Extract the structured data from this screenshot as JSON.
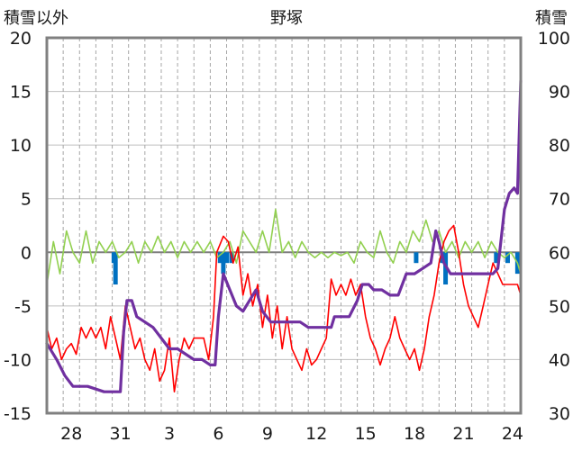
{
  "chart_data": {
    "type": "line",
    "title": "野塚",
    "left_axis_title": "積雪以外",
    "right_axis_title": "積雪",
    "left_ylim": [
      -15,
      20
    ],
    "left_yticks": [
      "20",
      "15",
      "10",
      "5",
      "0",
      "-5",
      "-10",
      "-15"
    ],
    "right_ylim": [
      30,
      100
    ],
    "right_yticks": [
      "100",
      "90",
      "80",
      "70",
      "60",
      "50",
      "40",
      "30"
    ],
    "x_range": [
      0,
      29.0
    ],
    "x_tick_labels": [
      {
        "x": 1.5,
        "label": "28"
      },
      {
        "x": 4.5,
        "label": "31"
      },
      {
        "x": 7.5,
        "label": "3"
      },
      {
        "x": 10.5,
        "label": "6"
      },
      {
        "x": 13.5,
        "label": "9"
      },
      {
        "x": 16.5,
        "label": "12"
      },
      {
        "x": 19.5,
        "label": "15"
      },
      {
        "x": 22.5,
        "label": "18"
      },
      {
        "x": 25.5,
        "label": "21"
      },
      {
        "x": 28.5,
        "label": "24"
      }
    ],
    "grid": true,
    "colors": {
      "temperature": "#ff0000",
      "wind": "#92d050",
      "precip": "#0070c0",
      "snow": "#7030a0",
      "zero": "#7f7f7f",
      "frame": "#808080"
    },
    "series": [
      {
        "key": "temperature",
        "axis": "left",
        "points": [
          [
            0,
            -7
          ],
          [
            0.3,
            -9
          ],
          [
            0.6,
            -8
          ],
          [
            0.9,
            -10
          ],
          [
            1.2,
            -9
          ],
          [
            1.5,
            -8.5
          ],
          [
            1.8,
            -9.5
          ],
          [
            2.1,
            -7
          ],
          [
            2.4,
            -8
          ],
          [
            2.7,
            -7
          ],
          [
            3,
            -8
          ],
          [
            3.3,
            -7
          ],
          [
            3.6,
            -9
          ],
          [
            3.9,
            -6
          ],
          [
            4.2,
            -8
          ],
          [
            4.5,
            -10
          ],
          [
            4.8,
            -5
          ],
          [
            5.1,
            -7
          ],
          [
            5.4,
            -9
          ],
          [
            5.7,
            -8
          ],
          [
            6,
            -10
          ],
          [
            6.3,
            -11
          ],
          [
            6.6,
            -9
          ],
          [
            6.9,
            -12
          ],
          [
            7.2,
            -11
          ],
          [
            7.5,
            -8
          ],
          [
            7.8,
            -13
          ],
          [
            8.1,
            -10
          ],
          [
            8.4,
            -8
          ],
          [
            8.7,
            -9
          ],
          [
            9,
            -8
          ],
          [
            9.3,
            -8
          ],
          [
            9.6,
            -8
          ],
          [
            9.9,
            -10
          ],
          [
            10.2,
            -6
          ],
          [
            10.4,
            0
          ],
          [
            10.8,
            1.5
          ],
          [
            11.1,
            1
          ],
          [
            11.4,
            -1
          ],
          [
            11.7,
            0.5
          ],
          [
            12,
            -4
          ],
          [
            12.3,
            -2
          ],
          [
            12.6,
            -5
          ],
          [
            12.9,
            -3
          ],
          [
            13.2,
            -7
          ],
          [
            13.5,
            -4
          ],
          [
            13.8,
            -8
          ],
          [
            14.1,
            -5
          ],
          [
            14.4,
            -9
          ],
          [
            14.7,
            -6
          ],
          [
            15,
            -9
          ],
          [
            15.3,
            -10
          ],
          [
            15.6,
            -11
          ],
          [
            15.9,
            -9
          ],
          [
            16.2,
            -10.5
          ],
          [
            16.5,
            -10
          ],
          [
            16.8,
            -9
          ],
          [
            17.1,
            -8
          ],
          [
            17.4,
            -2.5
          ],
          [
            17.7,
            -4
          ],
          [
            18,
            -3
          ],
          [
            18.3,
            -4
          ],
          [
            18.6,
            -2.5
          ],
          [
            18.9,
            -4
          ],
          [
            19.2,
            -3
          ],
          [
            19.5,
            -6
          ],
          [
            19.8,
            -8
          ],
          [
            20.1,
            -9
          ],
          [
            20.4,
            -10.5
          ],
          [
            20.7,
            -9
          ],
          [
            21,
            -8
          ],
          [
            21.3,
            -6
          ],
          [
            21.6,
            -8
          ],
          [
            21.9,
            -9
          ],
          [
            22.2,
            -10
          ],
          [
            22.5,
            -9
          ],
          [
            22.8,
            -11
          ],
          [
            23.1,
            -9
          ],
          [
            23.4,
            -6
          ],
          [
            23.7,
            -4
          ],
          [
            24,
            -1
          ],
          [
            24.3,
            1
          ],
          [
            24.6,
            2
          ],
          [
            24.9,
            2.5
          ],
          [
            25.2,
            0
          ],
          [
            25.5,
            -3
          ],
          [
            25.8,
            -5
          ],
          [
            26.1,
            -6
          ],
          [
            26.4,
            -7
          ],
          [
            26.7,
            -5
          ],
          [
            27,
            -3
          ],
          [
            27.3,
            -1
          ],
          [
            27.6,
            -2
          ],
          [
            27.9,
            -3
          ],
          [
            28.2,
            -3
          ],
          [
            28.5,
            -3
          ],
          [
            28.8,
            -3
          ],
          [
            29,
            -4
          ]
        ]
      },
      {
        "key": "wind",
        "axis": "left",
        "points": [
          [
            0,
            -3
          ],
          [
            0.4,
            1
          ],
          [
            0.8,
            -2
          ],
          [
            1.2,
            2
          ],
          [
            1.6,
            0
          ],
          [
            2,
            -1
          ],
          [
            2.4,
            2
          ],
          [
            2.8,
            -1
          ],
          [
            3.2,
            1
          ],
          [
            3.6,
            0
          ],
          [
            4,
            1
          ],
          [
            4.4,
            -0.5
          ],
          [
            4.8,
            0
          ],
          [
            5.2,
            1
          ],
          [
            5.6,
            -1
          ],
          [
            6,
            1
          ],
          [
            6.4,
            0
          ],
          [
            6.8,
            1.5
          ],
          [
            7.2,
            0
          ],
          [
            7.6,
            1
          ],
          [
            8,
            -0.5
          ],
          [
            8.4,
            1
          ],
          [
            8.8,
            0
          ],
          [
            9.2,
            1
          ],
          [
            9.6,
            0
          ],
          [
            10,
            1
          ],
          [
            10.4,
            -0.5
          ],
          [
            10.8,
            0
          ],
          [
            11.2,
            1
          ],
          [
            11.6,
            -1
          ],
          [
            12,
            2
          ],
          [
            12.4,
            1
          ],
          [
            12.8,
            0
          ],
          [
            13.2,
            2
          ],
          [
            13.6,
            0
          ],
          [
            14,
            4
          ],
          [
            14.4,
            0
          ],
          [
            14.8,
            1
          ],
          [
            15.2,
            -0.5
          ],
          [
            15.6,
            1
          ],
          [
            16,
            0
          ],
          [
            16.4,
            -0.5
          ],
          [
            16.8,
            0
          ],
          [
            17.2,
            -0.5
          ],
          [
            17.6,
            0
          ],
          [
            18,
            -0.3
          ],
          [
            18.4,
            0
          ],
          [
            18.8,
            -1
          ],
          [
            19.2,
            1
          ],
          [
            19.6,
            0
          ],
          [
            20,
            -0.5
          ],
          [
            20.4,
            2
          ],
          [
            20.8,
            0
          ],
          [
            21.2,
            -1
          ],
          [
            21.6,
            1
          ],
          [
            22,
            0
          ],
          [
            22.4,
            2
          ],
          [
            22.8,
            1
          ],
          [
            23.2,
            3
          ],
          [
            23.6,
            1
          ],
          [
            24,
            2
          ],
          [
            24.4,
            0
          ],
          [
            24.8,
            1
          ],
          [
            25.2,
            -0.5
          ],
          [
            25.6,
            1
          ],
          [
            26,
            0
          ],
          [
            26.4,
            1
          ],
          [
            26.8,
            -0.5
          ],
          [
            27.2,
            1
          ],
          [
            27.6,
            0
          ],
          [
            28,
            -0.5
          ],
          [
            28.4,
            0
          ],
          [
            28.8,
            -1
          ],
          [
            29,
            -2
          ]
        ]
      },
      {
        "key": "snow",
        "axis": "right",
        "points": [
          [
            0,
            43
          ],
          [
            0.6,
            40
          ],
          [
            1.1,
            37
          ],
          [
            1.6,
            35
          ],
          [
            2.5,
            35
          ],
          [
            3.5,
            34
          ],
          [
            4.2,
            34
          ],
          [
            4.5,
            34
          ],
          [
            4.7,
            45
          ],
          [
            4.9,
            51
          ],
          [
            5.2,
            51
          ],
          [
            5.5,
            48
          ],
          [
            6,
            47
          ],
          [
            6.5,
            46
          ],
          [
            7,
            44
          ],
          [
            7.5,
            42
          ],
          [
            8,
            42
          ],
          [
            8.5,
            41
          ],
          [
            9,
            40
          ],
          [
            9.5,
            40
          ],
          [
            10,
            39
          ],
          [
            10.3,
            39
          ],
          [
            10.5,
            48
          ],
          [
            10.8,
            56
          ],
          [
            11.2,
            53
          ],
          [
            11.6,
            50
          ],
          [
            12,
            49
          ],
          [
            12.4,
            51
          ],
          [
            12.8,
            53
          ],
          [
            13.2,
            49
          ],
          [
            13.7,
            47
          ],
          [
            14.3,
            47
          ],
          [
            15,
            47
          ],
          [
            15.5,
            47
          ],
          [
            16,
            46
          ],
          [
            16.5,
            46
          ],
          [
            17,
            46
          ],
          [
            17.4,
            46
          ],
          [
            17.6,
            48
          ],
          [
            18,
            48
          ],
          [
            18.5,
            48
          ],
          [
            19,
            51
          ],
          [
            19.3,
            54
          ],
          [
            19.7,
            54
          ],
          [
            20,
            53
          ],
          [
            20.5,
            53
          ],
          [
            21,
            52
          ],
          [
            21.5,
            52
          ],
          [
            22,
            56
          ],
          [
            22.5,
            56
          ],
          [
            23,
            57
          ],
          [
            23.5,
            58
          ],
          [
            23.8,
            64
          ],
          [
            24,
            62
          ],
          [
            24.3,
            58
          ],
          [
            24.7,
            56
          ],
          [
            25.1,
            56
          ],
          [
            26,
            56
          ],
          [
            26.5,
            56
          ],
          [
            27,
            56
          ],
          [
            27.3,
            56
          ],
          [
            27.6,
            57
          ],
          [
            28,
            68
          ],
          [
            28.3,
            71
          ],
          [
            28.6,
            72
          ],
          [
            28.8,
            71
          ],
          [
            29,
            92
          ]
        ]
      }
    ],
    "bars": {
      "key": "precip",
      "axis": "left",
      "points": [
        [
          4.1,
          -1
        ],
        [
          4.2,
          -3
        ],
        [
          10.6,
          -1
        ],
        [
          10.8,
          -2
        ],
        [
          11,
          -1
        ],
        [
          11.3,
          -1
        ],
        [
          22.6,
          -1
        ],
        [
          24.2,
          -1
        ],
        [
          24.4,
          -3
        ],
        [
          27.5,
          -1
        ],
        [
          28.2,
          -1
        ],
        [
          28.8,
          -2
        ]
      ]
    }
  }
}
